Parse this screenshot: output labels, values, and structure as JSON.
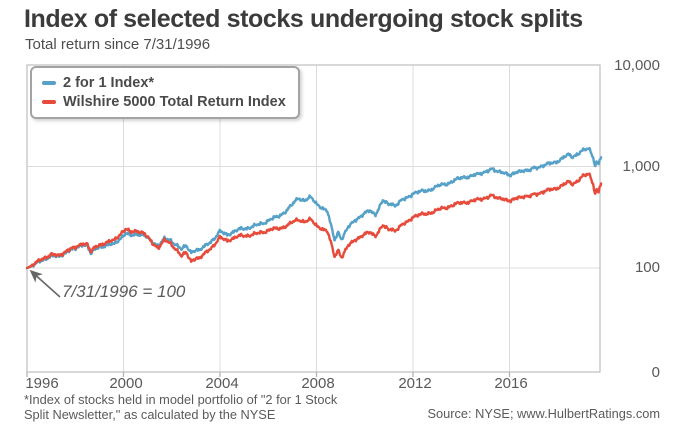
{
  "header": {
    "title": "Index of selected stocks undergoing stock splits",
    "subtitle": "Total return since 7/31/1996"
  },
  "chart_data": {
    "type": "line",
    "title": "Index of selected stocks undergoing stock splits",
    "subtitle": "Total return since 7/31/1996",
    "y_axis": {
      "scale": "log",
      "side": "right",
      "ticks": [
        "10,000",
        "1,000",
        "100",
        "0"
      ],
      "tick_values": [
        10000,
        1000,
        100,
        0
      ]
    },
    "x_axis": {
      "ticks": [
        "1996",
        "2000",
        "2004",
        "2008",
        "2012",
        "2016"
      ],
      "tick_values": [
        1996,
        2000,
        2004,
        2008,
        2012,
        2016
      ],
      "range": [
        1996,
        2019.8
      ]
    },
    "grid": true,
    "legend_position": "top-left",
    "annotation": {
      "text": "7/31/1996 = 100"
    },
    "x": [
      1996.0,
      1996.3,
      1996.7,
      1997.0,
      1997.3,
      1997.7,
      1998.0,
      1998.3,
      1998.5,
      1998.65,
      1998.8,
      1999.0,
      1999.3,
      1999.6,
      1999.9,
      2000.1,
      2000.3,
      2000.55,
      2000.8,
      2001.0,
      2001.2,
      2001.45,
      2001.7,
      2001.95,
      2002.2,
      2002.4,
      2002.6,
      2002.8,
      2003.0,
      2003.15,
      2003.5,
      2003.8,
      2004.0,
      2004.3,
      2004.6,
      2004.9,
      2005.2,
      2005.5,
      2005.8,
      2006.1,
      2006.4,
      2006.7,
      2007.0,
      2007.25,
      2007.5,
      2007.75,
      2008.0,
      2008.2,
      2008.45,
      2008.6,
      2008.75,
      2008.9,
      2009.05,
      2009.3,
      2009.6,
      2009.9,
      2010.2,
      2010.45,
      2010.75,
      2011.0,
      2011.1,
      2011.25,
      2011.5,
      2011.8,
      2012.0,
      2012.3,
      2012.6,
      2012.9,
      2013.2,
      2013.5,
      2013.8,
      2014.1,
      2014.4,
      2014.7,
      2015.0,
      2015.25,
      2015.5,
      2015.65,
      2015.9,
      2016.05,
      2016.35,
      2016.6,
      2016.8,
      2017.0,
      2017.3,
      2017.6,
      2017.9,
      2018.2,
      2018.45,
      2018.6,
      2018.8,
      2019.0,
      2019.3,
      2019.45,
      2019.55,
      2019.62,
      2019.68,
      2019.8
    ],
    "series": [
      {
        "name": "2 for 1 Index*",
        "color": "#56a1c7",
        "values": [
          100,
          107,
          122,
          132,
          128,
          148,
          153,
          172,
          167,
          136,
          152,
          163,
          166,
          172,
          200,
          218,
          207,
          218,
          212,
          197,
          180,
          167,
          193,
          187,
          170,
          152,
          164,
          144,
          152,
          147,
          175,
          198,
          228,
          215,
          228,
          244,
          250,
          262,
          278,
          302,
          318,
          360,
          420,
          490,
          465,
          495,
          430,
          400,
          360,
          260,
          190,
          228,
          192,
          248,
          300,
          330,
          368,
          340,
          458,
          420,
          440,
          412,
          455,
          500,
          548,
          562,
          582,
          620,
          660,
          692,
          740,
          790,
          802,
          835,
          900,
          935,
          880,
          905,
          850,
          800,
          900,
          925,
          895,
          965,
          1010,
          1050,
          1105,
          1210,
          1300,
          1240,
          1330,
          1420,
          1490,
          1280,
          1030,
          1120,
          1060,
          1245
        ]
      },
      {
        "name": "Wilshire 5000 Total Return Index",
        "color": "#e64b3b",
        "values": [
          100,
          109,
          126,
          136,
          131,
          152,
          157,
          177,
          172,
          141,
          158,
          171,
          177,
          187,
          222,
          240,
          224,
          235,
          222,
          200,
          176,
          159,
          186,
          175,
          152,
          130,
          141,
          118,
          126,
          122,
          150,
          172,
          198,
          188,
          197,
          209,
          210,
          216,
          227,
          240,
          242,
          258,
          280,
          300,
          288,
          298,
          262,
          248,
          228,
          175,
          130,
          152,
          127,
          163,
          192,
          207,
          225,
          210,
          260,
          237,
          248,
          233,
          258,
          290,
          322,
          332,
          346,
          362,
          385,
          405,
          425,
          445,
          452,
          470,
          495,
          515,
          482,
          497,
          468,
          448,
          500,
          512,
          498,
          530,
          556,
          580,
          608,
          655,
          700,
          672,
          720,
          790,
          840,
          700,
          545,
          600,
          560,
          688
        ]
      }
    ]
  },
  "footer": {
    "footnote_line1": "*Index of stocks held in model portfolio of \"2 for 1 Stock",
    "footnote_line2": "Split Newsletter,\" as calculated by the NYSE",
    "source": "Source: NYSE; www.HulbertRatings.com"
  },
  "colors": {
    "grid": "#dcdcdc",
    "frame": "#c2c2c2",
    "arrow": "#666666"
  }
}
